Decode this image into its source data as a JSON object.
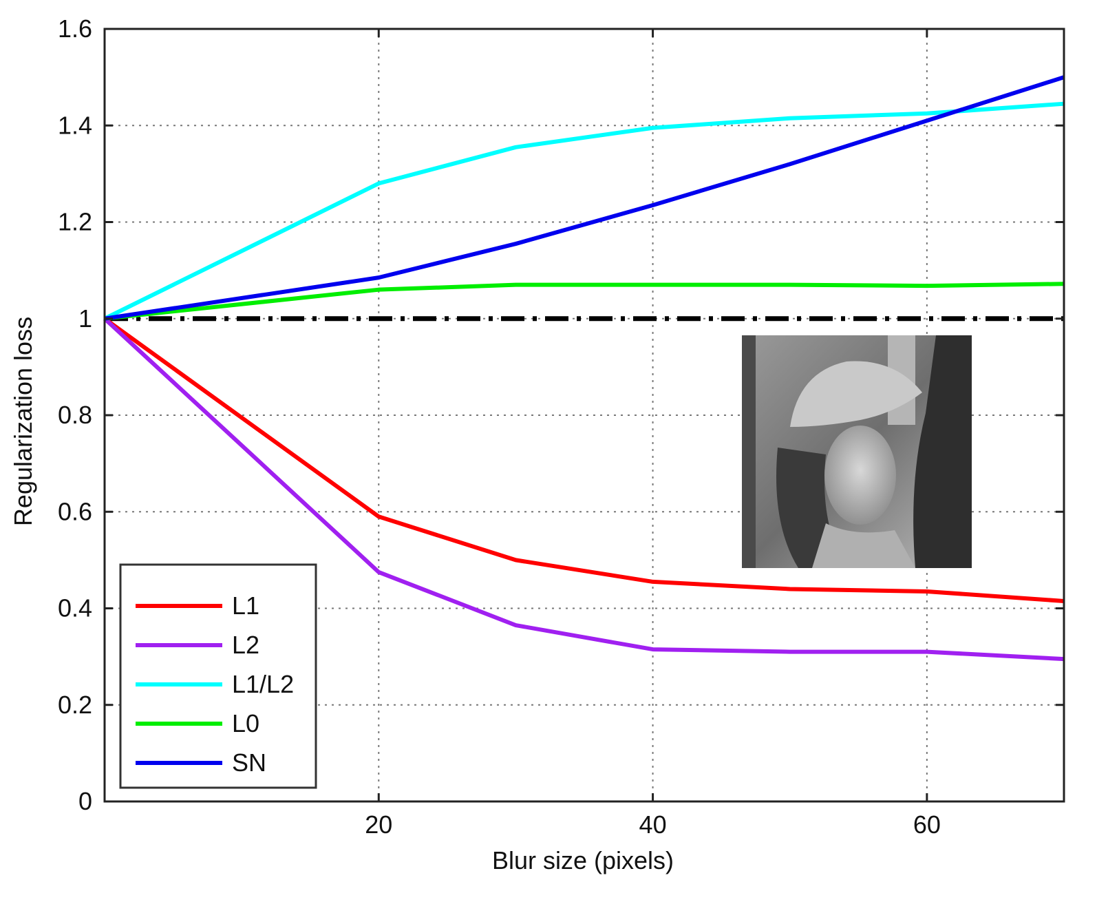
{
  "chart_data": {
    "type": "line",
    "xlabel": "Blur size (pixels)",
    "ylabel": "Regularization loss",
    "xlim": [
      0,
      70
    ],
    "ylim": [
      0,
      1.6
    ],
    "xticks": [
      20,
      40,
      60
    ],
    "yticks": [
      0,
      0.2,
      0.4,
      0.6,
      0.8,
      1,
      1.2,
      1.4,
      1.6
    ],
    "ytick_labels": [
      "0",
      "0.2",
      "0.4",
      "0.6",
      "0.8",
      "1",
      "1.2",
      "1.4",
      "1.6"
    ],
    "xtick_labels": [
      "20",
      "40",
      "60"
    ],
    "grid": true,
    "legend_position": "bottom-left",
    "x": [
      0,
      20,
      30,
      40,
      50,
      60,
      70
    ],
    "series": [
      {
        "name": "L1",
        "color": "#ff0000",
        "values": [
          1.0,
          0.59,
          0.5,
          0.455,
          0.44,
          0.435,
          0.415
        ]
      },
      {
        "name": "L2",
        "color": "#a020f0",
        "values": [
          1.0,
          0.475,
          0.365,
          0.315,
          0.31,
          0.31,
          0.295
        ]
      },
      {
        "name": "L1/L2",
        "color": "#00ffff",
        "values": [
          1.0,
          1.28,
          1.355,
          1.395,
          1.415,
          1.425,
          1.445
        ]
      },
      {
        "name": "L0",
        "color": "#00ee00",
        "values": [
          1.0,
          1.06,
          1.07,
          1.07,
          1.07,
          1.068,
          1.072
        ]
      },
      {
        "name": "SN",
        "color": "#0000ee",
        "values": [
          1.0,
          1.085,
          1.155,
          1.235,
          1.32,
          1.41,
          1.5
        ]
      }
    ],
    "reference_line": {
      "y": 1,
      "style": "dash-dot",
      "color": "#000000"
    },
    "inset_image": {
      "description_icon": "portrait-photo-icon"
    }
  }
}
